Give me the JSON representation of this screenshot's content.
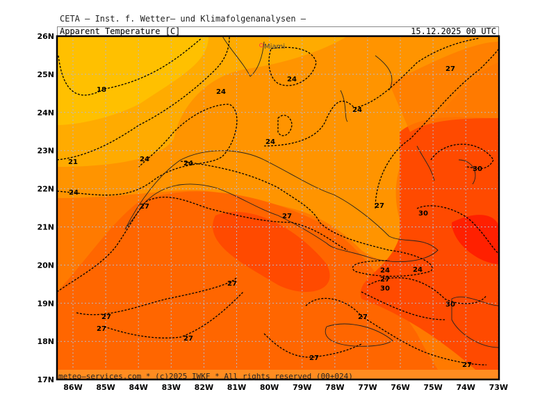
{
  "header": {
    "institute": "CETA — Inst. f. Wetter— und Klimafolgenanalysen —",
    "parameter": "Apparent_Temperature_[C]",
    "valid_time": "15.12.2025 00 UTC"
  },
  "footer": {
    "credit": "meteo—services.com * (c)2025 IWKF * All rights reserved (00+024)"
  },
  "map": {
    "city_label": "Miami",
    "lon_ticks": [
      "86W",
      "85W",
      "84W",
      "83W",
      "82W",
      "81W",
      "80W",
      "79W",
      "78W",
      "77W",
      "76W",
      "75W",
      "74W",
      "73W"
    ],
    "lat_ticks": [
      "26N",
      "25N",
      "24N",
      "23N",
      "22N",
      "21N",
      "20N",
      "19N",
      "18N",
      "17N"
    ],
    "contour_labels": [
      "18",
      "21",
      "24",
      "24",
      "24",
      "24",
      "24",
      "24",
      "24",
      "27",
      "27",
      "27",
      "27",
      "30",
      "30",
      "24",
      "24",
      "27",
      "30",
      "27",
      "27",
      "27",
      "27",
      "27",
      "27",
      "30",
      "27"
    ],
    "colors": {
      "t18": "#ffc000",
      "t21": "#ffab00",
      "t24": "#ff9400",
      "t27": "#ff7a00",
      "t28": "#ff6400",
      "t30": "#ff4a00",
      "t32": "#ff2000"
    }
  }
}
